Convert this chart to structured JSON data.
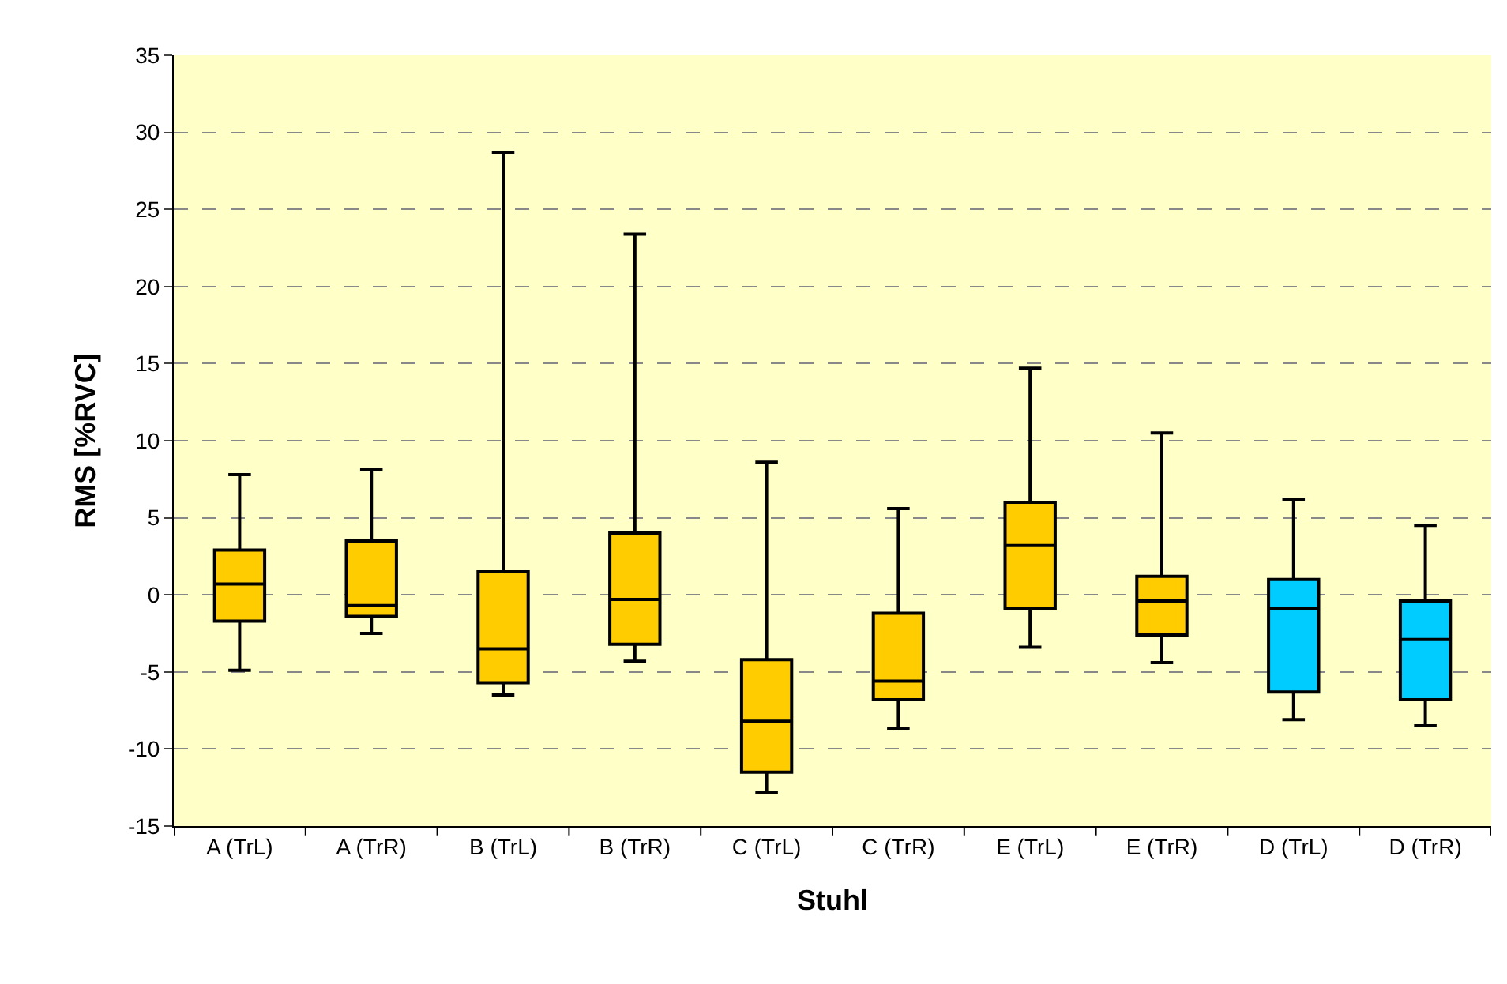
{
  "chart_data": {
    "type": "box",
    "xlabel": "Stuhl",
    "ylabel": "RMS [%RVC]",
    "categories": [
      "A (TrL)",
      "A (TrR)",
      "B (TrL)",
      "B (TrR)",
      "C (TrL)",
      "C (TrR)",
      "E (TrL)",
      "E (TrR)",
      "D (TrL)",
      "D (TrR)"
    ],
    "colors": [
      "#ffcc00",
      "#ffcc00",
      "#ffcc00",
      "#ffcc00",
      "#ffcc00",
      "#ffcc00",
      "#ffcc00",
      "#ffcc00",
      "#00ccff",
      "#00ccff"
    ],
    "boxes": [
      {
        "low": -4.9,
        "q1": -1.7,
        "median": 0.7,
        "q3": 2.9,
        "high": 7.8
      },
      {
        "low": -2.5,
        "q1": -1.4,
        "median": -0.7,
        "q3": 3.5,
        "high": 8.1
      },
      {
        "low": -6.5,
        "q1": -5.7,
        "median": -3.5,
        "q3": 1.5,
        "high": 28.7
      },
      {
        "low": -4.3,
        "q1": -3.2,
        "median": -0.3,
        "q3": 4.0,
        "high": 23.4
      },
      {
        "low": -12.8,
        "q1": -11.5,
        "median": -8.2,
        "q3": -4.2,
        "high": 8.6
      },
      {
        "low": -8.7,
        "q1": -6.8,
        "median": -5.6,
        "q3": -1.2,
        "high": 5.6
      },
      {
        "low": -3.4,
        "q1": -0.9,
        "median": 3.2,
        "q3": 6.0,
        "high": 14.7
      },
      {
        "low": -4.4,
        "q1": -2.6,
        "median": -0.4,
        "q3": 1.2,
        "high": 10.5
      },
      {
        "low": -8.1,
        "q1": -6.3,
        "median": -0.9,
        "q3": 1.0,
        "high": 6.2
      },
      {
        "low": -8.5,
        "q1": -6.8,
        "median": -2.9,
        "q3": -0.4,
        "high": 4.5
      }
    ],
    "ylim": [
      -15,
      35
    ],
    "yticks": [
      -15,
      -10,
      -5,
      0,
      5,
      10,
      15,
      20,
      25,
      30,
      35
    ],
    "grid": "y"
  }
}
